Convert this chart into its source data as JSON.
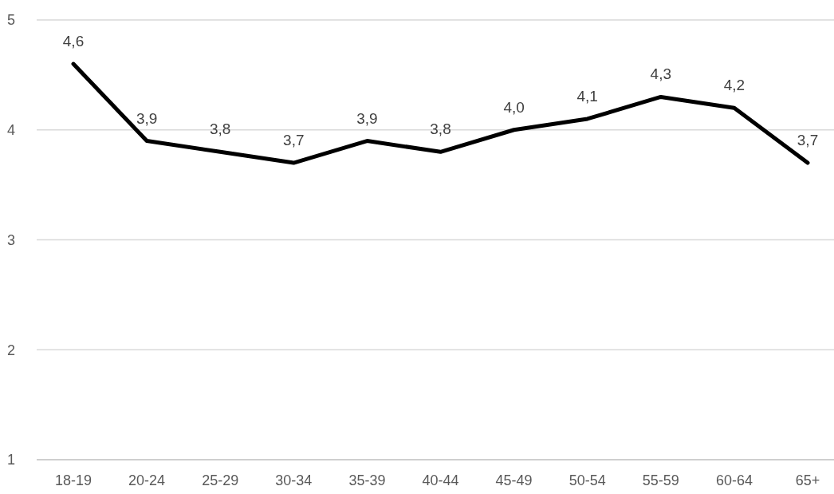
{
  "chart_data": {
    "type": "line",
    "categories": [
      "18-19",
      "20-24",
      "25-29",
      "30-34",
      "35-39",
      "40-44",
      "45-49",
      "50-54",
      "55-59",
      "60-64",
      "65+"
    ],
    "series": [
      {
        "color": "#000000",
        "values": [
          4.6,
          3.9,
          3.8,
          3.7,
          3.9,
          3.8,
          4.0,
          4.1,
          4.3,
          4.2,
          3.7
        ],
        "value_labels": [
          "4,6",
          "3,9",
          "3,8",
          "3,7",
          "3,9",
          "3,8",
          "4,0",
          "4,1",
          "4,3",
          "4,2",
          "3,7"
        ]
      }
    ],
    "ylim": [
      1,
      5
    ],
    "yticks": [
      1,
      2,
      3,
      4,
      5
    ],
    "grid": "y",
    "marker": "none",
    "line_style": "solid"
  }
}
